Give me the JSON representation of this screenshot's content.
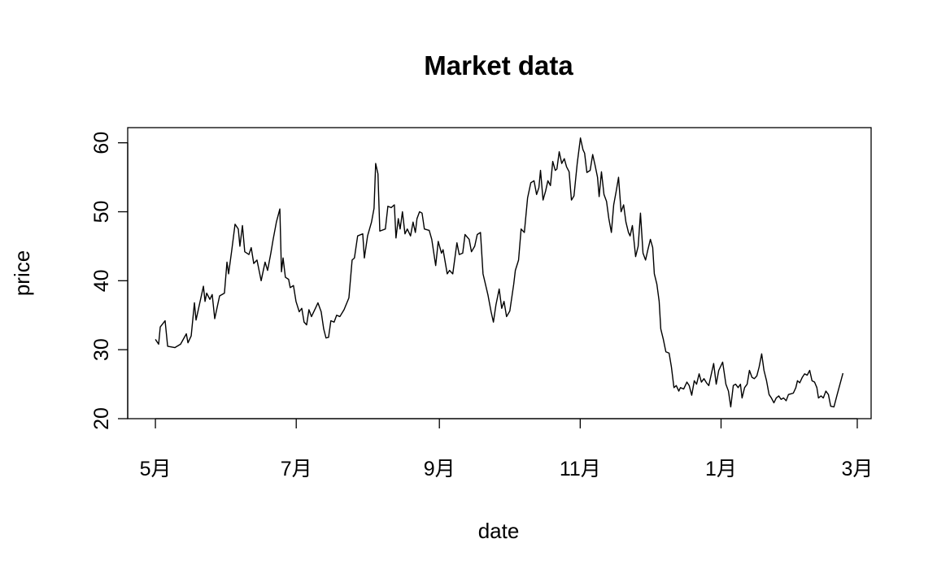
{
  "chart_data": {
    "type": "line",
    "title": "Market data",
    "x_label": "date",
    "y_label": "price",
    "color": "#000000",
    "x": [
      0,
      1.4,
      2.1,
      4.2,
      5.3,
      8.4,
      10.9,
      13.4,
      14.1,
      15.5,
      16.9,
      17.6,
      20.8,
      21.5,
      22.2,
      23.6,
      24.6,
      25.7,
      27.8,
      29.9,
      31.0,
      31.7,
      33.1,
      34.5,
      35.9,
      36.6,
      37.7,
      38.7,
      40.5,
      41.5,
      42.6,
      44.0,
      45.8,
      47.5,
      48.6,
      50.0,
      51.0,
      52.4,
      53.9,
      54.6,
      55.3,
      56.3,
      57.7,
      58.4,
      59.8,
      60.9,
      62.3,
      63.4,
      64.4,
      65.5,
      66.5,
      67.6,
      69.3,
      70.4,
      71.8,
      72.9,
      73.9,
      75.0,
      76.0,
      77.4,
      78.5,
      79.9,
      81.7,
      83.8,
      85.2,
      86.2,
      87.6,
      89.8,
      90.5,
      91.9,
      93.6,
      94.7,
      95.4,
      96.4,
      97.2,
      99.6,
      100.7,
      102.1,
      103.5,
      104.2,
      105.2,
      106.0,
      107.0,
      108.1,
      109.1,
      110.5,
      111.6,
      112.6,
      113.3,
      114.4,
      115.5,
      116.5,
      118.6,
      119.7,
      121.4,
      122.5,
      123.9,
      124.6,
      126.4,
      127.4,
      128.8,
      130.6,
      131.6,
      133.1,
      134.1,
      135.9,
      136.9,
      138.3,
      139.4,
      140.8,
      141.9,
      144.0,
      145.4,
      146.4,
      147.5,
      148.9,
      150.0,
      151.0,
      152.1,
      153.5,
      155.2,
      155.9,
      157.3,
      158.4,
      159.8,
      161.2,
      162.6,
      164.0,
      165.1,
      166.1,
      166.8,
      167.9,
      169.0,
      170.0,
      171.1,
      172.1,
      173.2,
      173.9,
      174.9,
      176.0,
      177.1,
      178.1,
      179.2,
      180.2,
      181.3,
      182.7,
      184.1,
      185.2,
      185.9,
      186.9,
      188.3,
      189.4,
      190.4,
      191.5,
      192.2,
      193.2,
      194.3,
      195.4,
      196.4,
      197.5,
      198.5,
      199.6,
      200.6,
      201.7,
      202.8,
      203.8,
      204.9,
      205.6,
      206.6,
      208.0,
      209.1,
      210.1,
      211.2,
      212.3,
      213.3,
      214.4,
      215.4,
      216.1,
      217.2,
      218.2,
      218.9,
      220.0,
      221.1,
      222.5,
      223.5,
      224.6,
      225.6,
      226.7,
      227.4,
      228.8,
      230.2,
      231.2,
      232.3,
      233.4,
      234.4,
      235.5,
      236.5,
      237.6,
      238.7,
      239.7,
      240.8,
      241.8,
      242.9,
      244.0,
      245.7,
      247.1,
      248.2,
      249.2,
      250.3,
      251.3,
      252.4,
      253.4,
      254.1,
      255.2,
      256.3,
      257.3,
      258.4,
      259.4,
      260.5,
      261.5,
      262.6,
      263.6,
      264.7,
      265.8,
      266.8,
      267.9,
      268.9,
      270.0,
      271.0,
      272.1,
      273.2,
      274.2,
      275.3,
      276.3,
      277.4,
      278.1,
      279.1,
      280.2,
      281.2,
      282.3,
      283.4,
      284.4,
      285.5,
      286.5,
      287.2,
      288.3,
      289.3,
      290.4,
      291.5,
      292.5,
      293.9,
      295.3,
      297.8
    ],
    "values": [
      31.5,
      30.8,
      33.3,
      34.2,
      30.5,
      30.3,
      30.8,
      32.3,
      31,
      32,
      36.8,
      34.3,
      39.2,
      37,
      38.2,
      37.3,
      38,
      34.5,
      37.8,
      38.2,
      42.7,
      41,
      44.5,
      48.2,
      47.5,
      45,
      48,
      44.2,
      43.8,
      44.8,
      42.5,
      43,
      40,
      42.7,
      41.5,
      44,
      46,
      48.5,
      50.4,
      41.3,
      43.3,
      40.5,
      40.2,
      39,
      39.3,
      37,
      35.5,
      36,
      34,
      33.6,
      35.8,
      34.8,
      36,
      36.8,
      35.5,
      33,
      31.7,
      31.8,
      34.2,
      34,
      35,
      34.8,
      35.8,
      37.5,
      43,
      43.3,
      46.5,
      46.8,
      43.3,
      46.5,
      48.5,
      50.5,
      57,
      55.5,
      47.2,
      47.5,
      50.8,
      50.6,
      51,
      46.2,
      49,
      47.5,
      50,
      46.8,
      47.5,
      46.5,
      48.5,
      47,
      49,
      50,
      49.8,
      47.5,
      47.3,
      46,
      42.2,
      45.7,
      44,
      44.5,
      41,
      41.5,
      41,
      45.5,
      43.8,
      44,
      46.7,
      46,
      44.2,
      45,
      46.7,
      47,
      41,
      38,
      35.5,
      34,
      36.5,
      38.8,
      36,
      37,
      34.8,
      35.6,
      39.5,
      41.5,
      43,
      47.5,
      47,
      52,
      54.2,
      54.5,
      52.5,
      53.5,
      56,
      51.7,
      53,
      54.5,
      53.8,
      57.3,
      56,
      56.2,
      58.7,
      57,
      57.7,
      56.5,
      55.8,
      51.7,
      52.3,
      57,
      60.7,
      59,
      58.5,
      55.7,
      56,
      58.3,
      56.8,
      55,
      52.2,
      55.8,
      52.5,
      51.5,
      49,
      47,
      51,
      53,
      55,
      50,
      51,
      48.5,
      47,
      46.5,
      48,
      43.5,
      45,
      49.8,
      44,
      43,
      44.5,
      46,
      44.8,
      41,
      39.5,
      37,
      33,
      31.5,
      29.7,
      29.5,
      27.5,
      24.5,
      24.8,
      24,
      24.5,
      24.3,
      25.3,
      24.8,
      23.4,
      25.5,
      25,
      26.5,
      25.3,
      25.8,
      25.2,
      24.8,
      26.5,
      28,
      25,
      27,
      28.2,
      25,
      24,
      21.7,
      24.8,
      25,
      24.5,
      25,
      23,
      24.5,
      25,
      27,
      26,
      25.8,
      26.2,
      27.5,
      29.4,
      27,
      25.5,
      23.5,
      23,
      22.3,
      23,
      23.3,
      22.8,
      23,
      22.6,
      23.5,
      23.6,
      23.7,
      24.5,
      25.5,
      25.2,
      26,
      26.5,
      26.3,
      27,
      25.5,
      25.3,
      24.5,
      23,
      23.3,
      23,
      24,
      23.5,
      21.8,
      21.7,
      23.5,
      26.6
    ],
    "xlim": [
      -12,
      310
    ],
    "xticks": [
      {
        "value": 0,
        "label": "5月"
      },
      {
        "value": 61,
        "label": "7月"
      },
      {
        "value": 123,
        "label": "9月"
      },
      {
        "value": 184,
        "label": "11月"
      },
      {
        "value": 245,
        "label": "1月"
      },
      {
        "value": 304,
        "label": "3月"
      }
    ],
    "ylim": [
      20,
      62.2
    ],
    "yticks": [
      20,
      30,
      40,
      50,
      60
    ]
  }
}
